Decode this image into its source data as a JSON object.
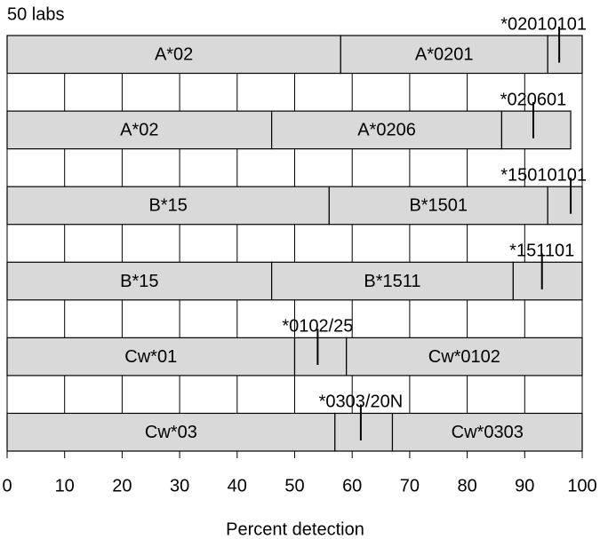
{
  "chart_data": {
    "type": "bar",
    "orientation": "horizontal",
    "stacked": true,
    "title": "50 labs",
    "x_label": "Percent detection",
    "xlim": [
      0,
      100
    ],
    "xticks": [
      0,
      10,
      20,
      30,
      40,
      50,
      60,
      70,
      80,
      90,
      100
    ],
    "grid": true,
    "color": "#d9d9d9",
    "bars": [
      {
        "segments": [
          {
            "label": "A*02",
            "value": 58
          },
          {
            "label": "A*0201",
            "value": 36
          },
          {
            "value": 6
          }
        ],
        "marker": 96,
        "marker_label": "*02010101"
      },
      {
        "segments": [
          {
            "label": "A*02",
            "value": 46
          },
          {
            "label": "A*0206",
            "value": 40
          },
          {
            "value": 12
          }
        ],
        "marker": 91.5,
        "marker_label": "*020601"
      },
      {
        "segments": [
          {
            "label": "B*15",
            "value": 56
          },
          {
            "label": "B*1501",
            "value": 38
          },
          {
            "value": 6
          }
        ],
        "marker": 98,
        "marker_label": "*15010101"
      },
      {
        "segments": [
          {
            "label": "B*15",
            "value": 46
          },
          {
            "label": "B*1511",
            "value": 42
          },
          {
            "value": 12
          }
        ],
        "marker": 93,
        "marker_label": "*151101"
      },
      {
        "segments": [
          {
            "label": "Cw*01",
            "value": 50
          },
          {
            "value": 9
          },
          {
            "label": "Cw*0102",
            "value": 41
          }
        ],
        "marker": 54,
        "marker_label": "*0102/25"
      },
      {
        "segments": [
          {
            "label": "Cw*03",
            "value": 57
          },
          {
            "value": 10
          },
          {
            "label": "Cw*0303",
            "value": 33
          }
        ],
        "marker": 61.5,
        "marker_label": "*0303/20N"
      }
    ]
  }
}
